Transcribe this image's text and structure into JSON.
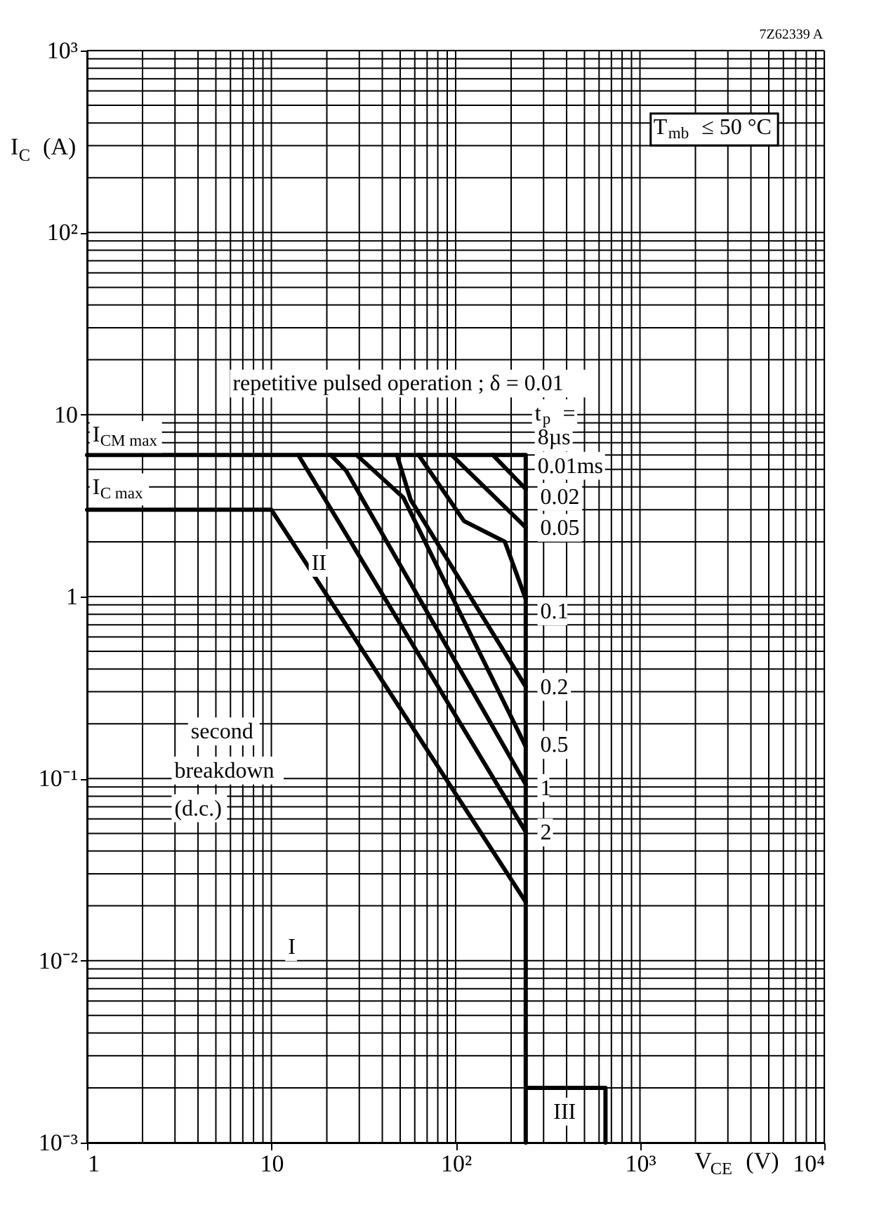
{
  "chart_data": {
    "type": "line",
    "xlabel": "V$_{CE}$ (V)",
    "ylabel": "I$_{C}$ (A)",
    "log": "xy",
    "grid": true,
    "marker": "none",
    "line_style": "solid",
    "xlim": [
      1,
      10000
    ],
    "ylim": [
      0.001,
      1000
    ],
    "xticks": [
      1,
      10,
      {
        "value": 100,
        "label": "10²"
      },
      {
        "value": 1000,
        "label": "10³"
      },
      {
        "value": 10000,
        "label": "10⁴"
      }
    ],
    "yticks": [
      {
        "value": 0.001,
        "label": "10⁻³"
      },
      {
        "value": 0.01,
        "label": "10⁻²"
      },
      {
        "value": 0.1,
        "label": "10⁻¹"
      },
      1,
      10,
      {
        "value": 100,
        "label": "10²"
      },
      {
        "value": 1000,
        "label": "10³"
      }
    ],
    "series": [
      {
        "color": "#000000",
        "x": [
          1,
          240,
          240
        ],
        "values": [
          6,
          6,
          0.001
        ]
      },
      {
        "color": "#000000",
        "x": [
          1,
          10,
          240
        ],
        "values": [
          3,
          3,
          0.021
        ]
      },
      {
        "color": "#000000",
        "x": [
          240,
          650,
          650
        ],
        "values": [
          0.002,
          0.002,
          0.001
        ]
      },
      {
        "color": "#000000",
        "x": [
          14,
          240
        ],
        "values": [
          6,
          0.051
        ]
      },
      {
        "color": "#000000",
        "x": [
          21,
          25.5,
          240
        ],
        "values": [
          6,
          4.9,
          0.093
        ]
      },
      {
        "color": "#000000",
        "x": [
          29,
          52,
          240
        ],
        "values": [
          6,
          3.5,
          0.15
        ]
      },
      {
        "color": "#000000",
        "x": [
          48,
          57,
          240
        ],
        "values": [
          6,
          3.4,
          0.32
        ]
      },
      {
        "color": "#000000",
        "x": [
          63,
          111,
          185,
          240
        ],
        "values": [
          6,
          2.6,
          2.0,
          0.97
        ]
      },
      {
        "color": "#000000",
        "x": [
          95,
          240
        ],
        "values": [
          6,
          2.4
        ]
      },
      {
        "color": "#000000",
        "x": [
          159,
          240
        ],
        "values": [
          6,
          3.9
        ]
      }
    ],
    "annotations": [
      "7Z62339 A",
      "T$_{mb}$ ≤ 50 °C",
      "repetitive pulsed operation ; δ = 0.01",
      "I$_{CM max}$",
      "I$_{C max}$",
      "II",
      "second",
      "breakdown",
      "(d.c.)",
      "I",
      "III",
      "t$_{p}$ =",
      "8µs",
      "0.01ms",
      "0.02",
      "0.05",
      "0.1",
      "0.2",
      "0.5",
      "1",
      "2"
    ]
  }
}
